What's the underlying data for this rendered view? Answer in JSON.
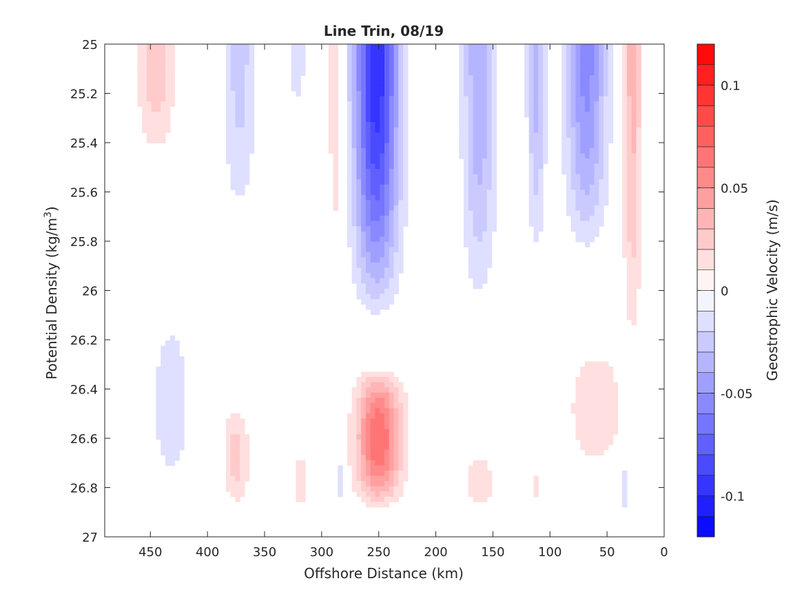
{
  "chart_data": {
    "type": "contour",
    "title": "Line Trin, 08/19",
    "xlabel": "Offshore Distance (km)",
    "ylabel": "Potential Density (kg/m^3)",
    "ylabel_base": "Potential Density (kg/m",
    "ylabel_sup": "3",
    "ylabel_close": ")",
    "colorbar_label": "Geostrophic Velocity (m/s)",
    "xlim": [
      490,
      0
    ],
    "x_reversed": true,
    "ylim": [
      25,
      27
    ],
    "y_reversed": true,
    "xticks": [
      450,
      400,
      350,
      300,
      250,
      200,
      150,
      100,
      50,
      0
    ],
    "xtick_labels": [
      "450",
      "400",
      "350",
      "300",
      "250",
      "200",
      "150",
      "100",
      "50",
      "0"
    ],
    "yticks": [
      25,
      25.2,
      25.4,
      25.6,
      25.8,
      26,
      26.2,
      26.4,
      26.6,
      26.8,
      27
    ],
    "ytick_labels": [
      "25",
      "25.2",
      "25.4",
      "25.6",
      "25.8",
      "26",
      "26.2",
      "26.4",
      "26.6",
      "26.8",
      "27"
    ],
    "colorbar": {
      "clim": [
        -0.12,
        0.12
      ],
      "levels": 24,
      "ticks": [
        0.1,
        0.05,
        0,
        -0.05,
        -0.1
      ],
      "tick_labels": [
        "0.1",
        "0.05",
        "0",
        "-0.05",
        "-0.1"
      ]
    },
    "features": [
      {
        "name": "positive-core-nearshore-slope-0",
        "x_center": 445,
        "x_half_width": 20,
        "y_top": 25,
        "y_bottom": 25.5,
        "peak": 0.03
      },
      {
        "name": "negative-band-0",
        "x_center": 372,
        "x_half_width": 18,
        "y_top": 25,
        "y_bottom": 25.8,
        "peak": -0.025
      },
      {
        "name": "negative-band-1",
        "x_center": 322,
        "x_half_width": 10,
        "y_top": 25,
        "y_bottom": 25.3,
        "peak": -0.02
      },
      {
        "name": "positive-band-0",
        "x_center": 288,
        "x_half_width": 8,
        "y_top": 25,
        "y_bottom": 26.05,
        "peak": 0.02
      },
      {
        "name": "negative-jet-core",
        "x_center": 252,
        "x_half_width": 24,
        "y_top": 25,
        "y_bottom": 26.15,
        "peak": -0.1
      },
      {
        "name": "negative-band-2",
        "x_center": 162,
        "x_half_width": 18,
        "y_top": 25,
        "y_bottom": 26.15,
        "peak": -0.04
      },
      {
        "name": "negative-band-3",
        "x_center": 112,
        "x_half_width": 10,
        "y_top": 25,
        "y_bottom": 25.95,
        "peak": -0.035
      },
      {
        "name": "negative-band-4",
        "x_center": 68,
        "x_half_width": 22,
        "y_top": 25,
        "y_bottom": 25.9,
        "peak": -0.055
      },
      {
        "name": "positive-band-1",
        "x_center": 28,
        "x_half_width": 10,
        "y_top": 25,
        "y_bottom": 26.35,
        "peak": 0.035
      },
      {
        "name": "positive-deep-core",
        "x_center": 250,
        "x_half_width": 24,
        "y_top": 26.3,
        "y_bottom": 26.9,
        "peak": 0.07
      },
      {
        "name": "positive-deep-band-0",
        "x_center": 375,
        "x_half_width": 14,
        "y_top": 26.45,
        "y_bottom": 26.9,
        "peak": 0.025
      },
      {
        "name": "positive-deep-band-1",
        "x_center": 318,
        "x_half_width": 8,
        "y_top": 26.65,
        "y_bottom": 26.9,
        "peak": 0.02
      },
      {
        "name": "positive-deep-band-2",
        "x_center": 162,
        "x_half_width": 16,
        "y_top": 26.65,
        "y_bottom": 26.9,
        "peak": 0.02
      },
      {
        "name": "positive-deep-band-3",
        "x_center": 113,
        "x_half_width": 7,
        "y_top": 26.7,
        "y_bottom": 26.9,
        "peak": 0.012
      },
      {
        "name": "positive-deep-shelf",
        "x_center": 60,
        "x_half_width": 30,
        "y_top": 26.2,
        "y_bottom": 26.75,
        "peak": 0.02
      },
      {
        "name": "negative-deep-band-0",
        "x_center": 432,
        "x_half_width": 26,
        "y_top": 26.0,
        "y_bottom": 26.9,
        "peak": -0.015
      },
      {
        "name": "negative-deep-band-1",
        "x_center": 285,
        "x_half_width": 5,
        "y_top": 26.65,
        "y_bottom": 26.9,
        "peak": -0.018
      },
      {
        "name": "negative-deep-band-2",
        "x_center": 35,
        "x_half_width": 5,
        "y_top": 26.7,
        "y_bottom": 26.9,
        "peak": -0.02
      }
    ],
    "data_ymax": 26.9,
    "grid": false,
    "colors": {
      "negative": "#0000ff",
      "positive": "#ff0000",
      "neutral": "#ffffff"
    }
  }
}
